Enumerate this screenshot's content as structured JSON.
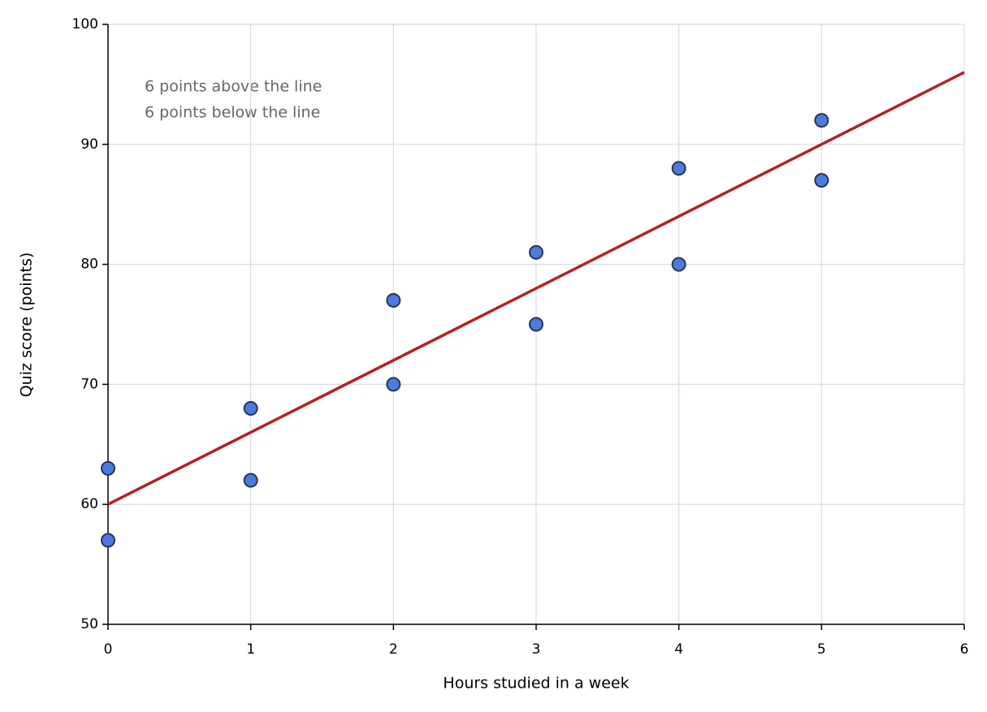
{
  "chart_data": {
    "type": "scatter",
    "xlabel": "Hours studied in a week",
    "ylabel": "Quiz score (points)",
    "annotations": [
      "6 points above the line",
      "6 points below the line"
    ],
    "series": [
      {
        "color": "#4a7be0",
        "x": [
          0,
          0,
          1,
          1,
          2,
          2,
          3,
          3,
          4,
          4,
          5,
          5
        ],
        "values": [
          63,
          57,
          68,
          62,
          77,
          70,
          81,
          75,
          88,
          80,
          92,
          87
        ]
      }
    ],
    "fit_line": {
      "color": "#b22222",
      "x": [
        0,
        6
      ],
      "y": [
        60,
        96
      ]
    },
    "xlim": [
      0,
      6
    ],
    "xticks": [
      0,
      1,
      2,
      3,
      4,
      5,
      6
    ],
    "ylim": [
      50,
      100
    ],
    "yticks": [
      50,
      60,
      70,
      80,
      90,
      100
    ],
    "grid": true
  }
}
